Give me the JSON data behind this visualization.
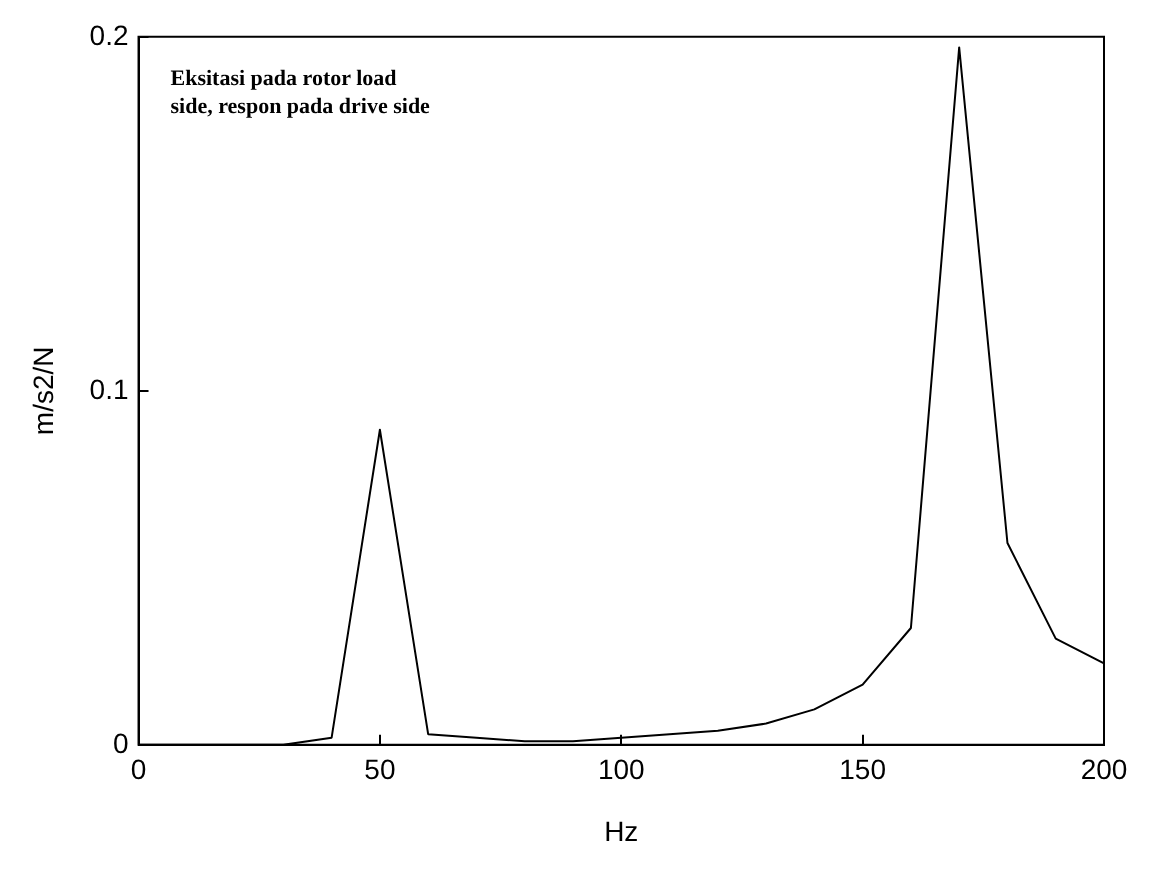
{
  "chart_data": {
    "type": "line",
    "xlabel": "Hz",
    "ylabel": "m/s2/N",
    "annotations": [
      "Eksitasi pada rotor load\nside, respon pada drive side"
    ],
    "x": [
      0,
      10,
      20,
      30,
      40,
      50,
      60,
      70,
      80,
      90,
      100,
      110,
      120,
      130,
      140,
      150,
      160,
      170,
      180,
      190,
      200
    ],
    "series": [
      {
        "color": "#000000",
        "values": [
          0,
          0,
          0,
          0,
          0.002,
          0.089,
          0.003,
          0.002,
          0.001,
          0.001,
          0.002,
          0.003,
          0.004,
          0.006,
          0.01,
          0.017,
          0.033,
          0.197,
          0.057,
          0.03,
          0.023
        ]
      }
    ],
    "xlim": [
      0,
      200
    ],
    "xticks": [
      0,
      50,
      100,
      150,
      200
    ],
    "ylim": [
      0,
      0.2
    ],
    "yticks": [
      0,
      0.1,
      0.2
    ],
    "grid": false,
    "legend": false,
    "marker": "none",
    "line_style": "solid"
  }
}
